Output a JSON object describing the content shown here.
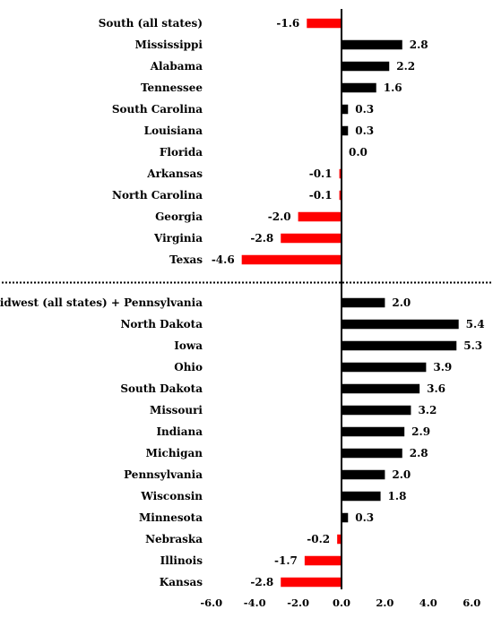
{
  "chart_data": {
    "type": "bar",
    "orientation": "horizontal",
    "xlim": [
      -6.0,
      6.0
    ],
    "xticks": [
      "-6.0",
      "-4.0",
      "-2.0",
      "0.0",
      "2.0",
      "4.0",
      "6.0"
    ],
    "xtick_values": [
      -6,
      -4,
      -2,
      0,
      2,
      4,
      6
    ],
    "grid": false,
    "legend": "none",
    "colors": {
      "positive": "#000000",
      "negative": "#ff0000"
    },
    "groups": [
      {
        "categories": [
          "South (all states)",
          "Mississippi",
          "Alabama",
          "Tennessee",
          "South Carolina",
          "Louisiana",
          "Florida",
          "Arkansas",
          "North Carolina",
          "Georgia",
          "Virginia",
          "Texas"
        ],
        "values": [
          -1.6,
          2.8,
          2.2,
          1.6,
          0.3,
          0.3,
          0.0,
          -0.1,
          -0.1,
          -2.0,
          -2.8,
          -4.6
        ],
        "labels": [
          "-1.6",
          "2.8",
          "2.2",
          "1.6",
          "0.3",
          "0.3",
          "0.0",
          "-0.1",
          "-0.1",
          "-2.0",
          "-2.8",
          "-4.6"
        ]
      },
      {
        "categories": [
          "Midwest (all states) + Pennsylvania",
          "North Dakota",
          "Iowa",
          "Ohio",
          "South Dakota",
          "Missouri",
          "Indiana",
          "Michigan",
          "Pennsylvania",
          "Wisconsin",
          "Minnesota",
          "Nebraska",
          "Illinois",
          "Kansas"
        ],
        "values": [
          2.0,
          5.4,
          5.3,
          3.9,
          3.6,
          3.2,
          2.9,
          2.8,
          2.0,
          1.8,
          0.3,
          -0.2,
          -1.7,
          -2.8
        ],
        "labels": [
          "2.0",
          "5.4",
          "5.3",
          "3.9",
          "3.6",
          "3.2",
          "2.9",
          "2.8",
          "2.0",
          "1.8",
          "0.3",
          "-0.2",
          "-1.7",
          "-2.8"
        ]
      }
    ]
  }
}
